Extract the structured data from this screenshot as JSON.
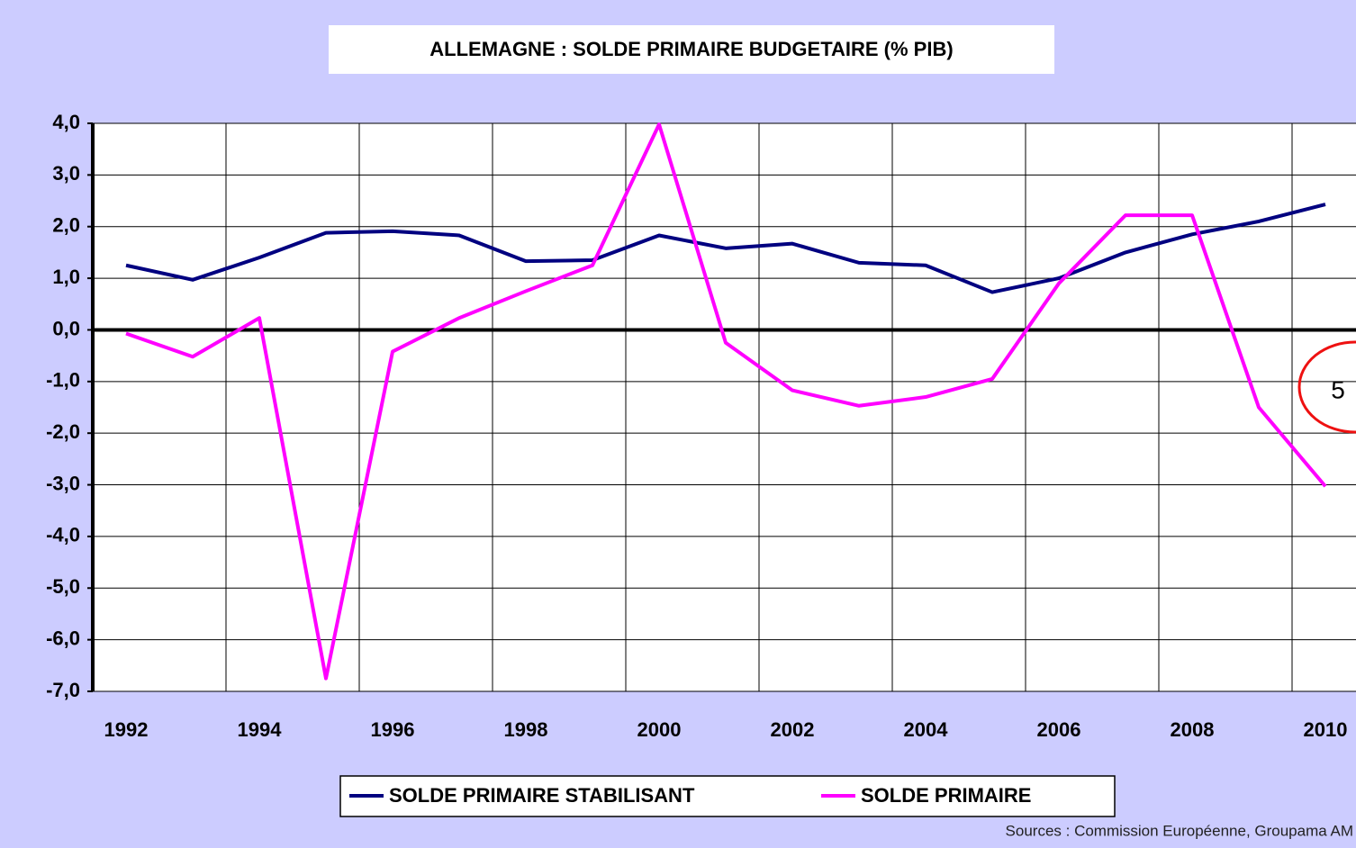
{
  "chart_data": {
    "type": "line",
    "title": "ALLEMAGNE : SOLDE PRIMAIRE BUDGETAIRE (% PIB)",
    "source": "Sources : Commission Européenne, Groupama AM",
    "annotation": "5",
    "categories": [
      "1992",
      null,
      "1994",
      null,
      "1996",
      null,
      "1998",
      null,
      "2000",
      null,
      "2002",
      null,
      "2004",
      null,
      "2006",
      null,
      "2008",
      null,
      "2010"
    ],
    "series": [
      {
        "name": "SOLDE PRIMAIRE STABILISANT",
        "color": "#000080",
        "values": [
          1.25,
          0.97,
          1.4,
          1.88,
          1.91,
          1.83,
          1.33,
          1.35,
          1.83,
          1.58,
          1.67,
          1.3,
          1.25,
          0.73,
          1.0,
          1.5,
          1.85,
          2.1,
          2.43
        ]
      },
      {
        "name": "SOLDE PRIMAIRE",
        "color": "#ff00ff",
        "values": [
          -0.07,
          -0.52,
          0.23,
          -6.75,
          -0.42,
          0.23,
          0.75,
          1.25,
          3.98,
          -0.25,
          -1.17,
          -1.47,
          -1.3,
          -0.95,
          0.9,
          2.22,
          2.22,
          -1.5,
          -3.03
        ]
      }
    ],
    "ylim": [
      -7,
      4
    ],
    "yticks": [
      {
        "value": 4,
        "label": "4,0"
      },
      {
        "value": 3,
        "label": "3,0"
      },
      {
        "value": 2,
        "label": "2,0"
      },
      {
        "value": 1,
        "label": "1,0"
      },
      {
        "value": 0,
        "label": "0,0"
      },
      {
        "value": -1,
        "label": "-1,0"
      },
      {
        "value": -2,
        "label": "-2,0"
      },
      {
        "value": -3,
        "label": "-3,0"
      },
      {
        "value": -4,
        "label": "-4,0"
      },
      {
        "value": -5,
        "label": "-5,0"
      },
      {
        "value": -6,
        "label": "-6,0"
      },
      {
        "value": -7,
        "label": "-7,0"
      }
    ],
    "grid": true
  }
}
